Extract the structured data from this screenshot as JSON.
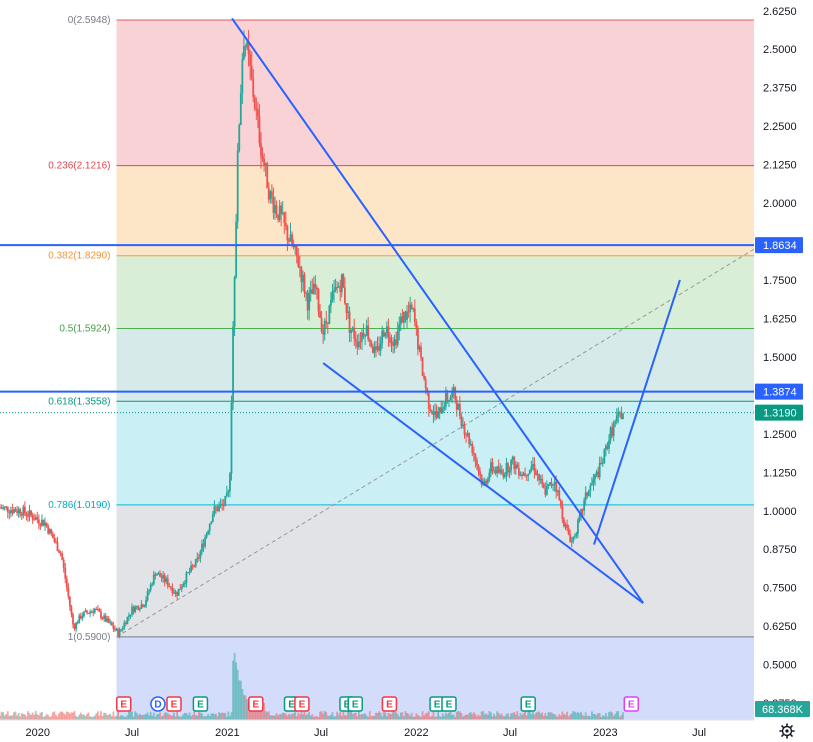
{
  "chart_data": {
    "type": "candlestick",
    "y_axis": {
      "ticks": [
        "2.6250",
        "2.5000",
        "2.3750",
        "2.2500",
        "2.1250",
        "2.0000",
        "1.7500",
        "1.6250",
        "1.5000",
        "1.2500",
        "1.1250",
        "1.0000",
        "0.8750",
        "0.7500",
        "0.6250",
        "0.5000",
        "0.3750"
      ],
      "range": [
        0.32,
        2.66
      ]
    },
    "x_axis": {
      "ticks": [
        {
          "label": "2020",
          "date": "2020-01-01"
        },
        {
          "label": "Jul",
          "date": "2020-07-01"
        },
        {
          "label": "2021",
          "date": "2021-01-01"
        },
        {
          "label": "Jul",
          "date": "2021-07-01"
        },
        {
          "label": "2022",
          "date": "2022-01-01"
        },
        {
          "label": "Jul",
          "date": "2022-07-01"
        },
        {
          "label": "2023",
          "date": "2023-01-01"
        },
        {
          "label": "Jul",
          "date": "2023-07-01"
        }
      ],
      "range": [
        "2019-10-20",
        "2023-10-15"
      ]
    },
    "fib_levels": [
      {
        "label": "0(2.5948)",
        "price": 2.5948,
        "line": "#e05a60",
        "fill": "#f9d2d6",
        "text": "#787b86"
      },
      {
        "label": "0.236(2.1216)",
        "price": 2.1216,
        "line": "#e04a4a",
        "fill": "#fde5c7",
        "text": "#e0474d"
      },
      {
        "label": "0.382(1.8290)",
        "price": 1.829,
        "line": "#f2a13f",
        "fill": "#d9eed6",
        "text": "#f0953a"
      },
      {
        "label": "0.5(1.5924)",
        "price": 1.5924,
        "line": "#4caf50",
        "fill": "#d6ebe9",
        "text": "#43a047"
      },
      {
        "label": "0.618(1.3558)",
        "price": 1.3558,
        "line": "#089981",
        "fill": "#caeff4",
        "text": "#089981"
      },
      {
        "label": "0.786(1.0190)",
        "price": 1.019,
        "line": "#00bcd4",
        "fill": "#e2e3e6",
        "text": "#00acc1"
      },
      {
        "label": "1(0.5900)",
        "price": 0.59,
        "line": "#787b86",
        "fill": "#d3dcfb",
        "text": "#787b86"
      }
    ],
    "price_lines": [
      {
        "label": "1.8634",
        "price": 1.8634,
        "color": "#2962ff",
        "style": "solid"
      },
      {
        "label": "1.3874",
        "price": 1.3874,
        "color": "#2962ff",
        "style": "solid"
      },
      {
        "label": "1.3190",
        "price": 1.319,
        "color": "#089981",
        "style": "dotted"
      }
    ],
    "volume_label": "68.368K",
    "trendlines": [
      {
        "from": {
          "date": "2021-01-10",
          "price": 2.6
        },
        "to": {
          "date": "2023-03-15",
          "price": 0.7
        },
        "color": "#2962ff"
      },
      {
        "from": {
          "date": "2021-07-05",
          "price": 1.48
        },
        "to": {
          "date": "2023-03-15",
          "price": 0.7
        },
        "color": "#2962ff"
      },
      {
        "from": {
          "date": "2022-12-10",
          "price": 0.89
        },
        "to": {
          "date": "2023-05-25",
          "price": 1.75
        },
        "color": "#2962ff"
      },
      {
        "from": {
          "date": "2020-06-01",
          "price": 0.59
        },
        "to": {
          "date": "2023-10-15",
          "price": 1.85
        },
        "color": "#9598a1",
        "dashed": true
      }
    ],
    "events": [
      {
        "letter": "E",
        "date": "2020-06-15",
        "kind": "earnings-red"
      },
      {
        "letter": "D",
        "date": "2020-08-20",
        "kind": "dividend"
      },
      {
        "letter": "E",
        "date": "2020-09-20",
        "kind": "earnings-red"
      },
      {
        "letter": "E",
        "date": "2020-11-10",
        "kind": "earnings-green"
      },
      {
        "letter": "E",
        "date": "2021-02-25",
        "kind": "earnings-red"
      },
      {
        "letter": "E",
        "date": "2021-05-05",
        "kind": "earnings-green"
      },
      {
        "letter": "E",
        "date": "2021-05-25",
        "kind": "earnings-red"
      },
      {
        "letter": "E",
        "date": "2021-08-20",
        "kind": "earnings-green"
      },
      {
        "letter": "E",
        "date": "2021-09-05",
        "kind": "earnings-green"
      },
      {
        "letter": "E",
        "date": "2021-11-10",
        "kind": "earnings-red"
      },
      {
        "letter": "E",
        "date": "2022-02-10",
        "kind": "earnings-green"
      },
      {
        "letter": "E",
        "date": "2022-03-05",
        "kind": "earnings-green"
      },
      {
        "letter": "E",
        "date": "2022-08-05",
        "kind": "earnings-green"
      },
      {
        "letter": "E",
        "date": "2023-02-20",
        "kind": "earnings-upcoming"
      }
    ],
    "price_path": [
      [
        "2019-10-20",
        1.01
      ],
      [
        "2019-12-01",
        1.0
      ],
      [
        "2020-01-15",
        0.96
      ],
      [
        "2020-02-15",
        0.86
      ],
      [
        "2020-03-10",
        0.62
      ],
      [
        "2020-03-25",
        0.66
      ],
      [
        "2020-04-20",
        0.68
      ],
      [
        "2020-05-20",
        0.63
      ],
      [
        "2020-06-05",
        0.6
      ],
      [
        "2020-07-01",
        0.68
      ],
      [
        "2020-07-25",
        0.7
      ],
      [
        "2020-08-15",
        0.8
      ],
      [
        "2020-09-05",
        0.77
      ],
      [
        "2020-09-25",
        0.73
      ],
      [
        "2020-10-15",
        0.79
      ],
      [
        "2020-11-05",
        0.84
      ],
      [
        "2020-11-20",
        0.92
      ],
      [
        "2020-12-05",
        1.0
      ],
      [
        "2020-12-25",
        1.02
      ],
      [
        "2021-01-05",
        1.06
      ],
      [
        "2021-01-12",
        1.6
      ],
      [
        "2021-01-22",
        2.2
      ],
      [
        "2021-02-01",
        2.55
      ],
      [
        "2021-02-12",
        2.45
      ],
      [
        "2021-02-25",
        2.3
      ],
      [
        "2021-03-10",
        2.15
      ],
      [
        "2021-03-25",
        2.02
      ],
      [
        "2021-04-15",
        1.95
      ],
      [
        "2021-05-01",
        1.88
      ],
      [
        "2021-05-20",
        1.8
      ],
      [
        "2021-06-05",
        1.68
      ],
      [
        "2021-06-20",
        1.72
      ],
      [
        "2021-07-05",
        1.58
      ],
      [
        "2021-07-25",
        1.7
      ],
      [
        "2021-08-10",
        1.75
      ],
      [
        "2021-08-25",
        1.6
      ],
      [
        "2021-09-10",
        1.55
      ],
      [
        "2021-09-25",
        1.6
      ],
      [
        "2021-10-15",
        1.5
      ],
      [
        "2021-11-01",
        1.6
      ],
      [
        "2021-11-20",
        1.55
      ],
      [
        "2021-12-05",
        1.63
      ],
      [
        "2021-12-25",
        1.65
      ],
      [
        "2022-01-10",
        1.48
      ],
      [
        "2022-01-25",
        1.35
      ],
      [
        "2022-02-10",
        1.3
      ],
      [
        "2022-02-25",
        1.36
      ],
      [
        "2022-03-15",
        1.38
      ],
      [
        "2022-04-01",
        1.28
      ],
      [
        "2022-04-20",
        1.2
      ],
      [
        "2022-05-10",
        1.08
      ],
      [
        "2022-05-25",
        1.14
      ],
      [
        "2022-06-15",
        1.12
      ],
      [
        "2022-07-05",
        1.16
      ],
      [
        "2022-07-25",
        1.12
      ],
      [
        "2022-08-15",
        1.15
      ],
      [
        "2022-09-05",
        1.06
      ],
      [
        "2022-09-25",
        1.1
      ],
      [
        "2022-10-15",
        0.95
      ],
      [
        "2022-10-28",
        0.9
      ],
      [
        "2022-11-10",
        0.96
      ],
      [
        "2022-11-25",
        1.05
      ],
      [
        "2022-12-10",
        1.1
      ],
      [
        "2022-12-25",
        1.15
      ],
      [
        "2023-01-10",
        1.25
      ],
      [
        "2023-01-25",
        1.3
      ],
      [
        "2023-02-05",
        1.319
      ]
    ]
  }
}
